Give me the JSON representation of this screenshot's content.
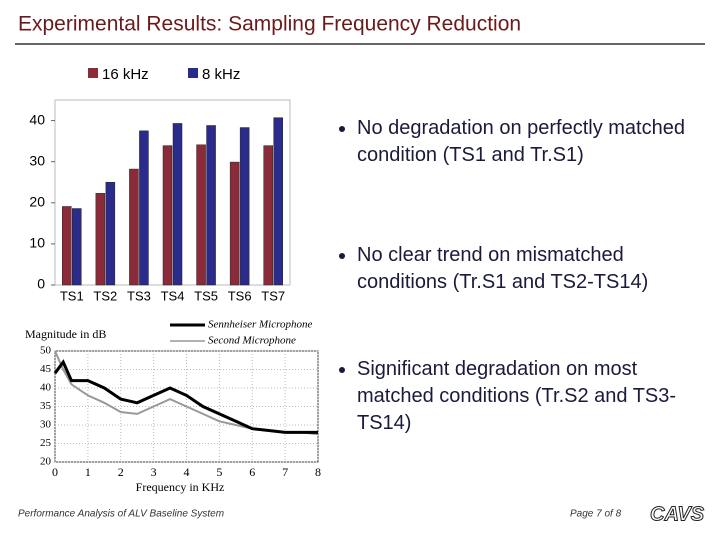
{
  "title": "Experimental Results: Sampling Frequency Reduction",
  "chart_data": [
    {
      "type": "bar",
      "categories": [
        "TS1",
        "TS2",
        "TS3",
        "TS4",
        "TS5",
        "TS6",
        "TS7"
      ],
      "series": [
        {
          "name": "16 kHz",
          "color": "#8b2b3a",
          "values": [
            19.1,
            22.3,
            28.2,
            33.9,
            34.1,
            29.9,
            33.9
          ]
        },
        {
          "name": "8 kHz",
          "color": "#2b2b8c",
          "values": [
            18.6,
            25,
            37.5,
            39.3,
            38.8,
            38.3,
            40.7
          ]
        }
      ],
      "ylim": [
        0,
        45
      ],
      "yticks": [
        0,
        10,
        20,
        30,
        40
      ],
      "grid": false
    },
    {
      "type": "line",
      "ylabel": "Magnitude in dB",
      "xlabel": "Frequency in KHz",
      "x": [
        0,
        0.25,
        0.5,
        1,
        1.5,
        2,
        2.5,
        3,
        3.5,
        4,
        4.5,
        5,
        5.5,
        6,
        6.5,
        7,
        7.5,
        8
      ],
      "series": [
        {
          "name": "Sennheiser Microphone",
          "color": "#000000",
          "values": [
            44,
            47,
            42,
            42,
            40,
            37,
            36,
            38,
            40,
            38,
            35,
            33,
            31,
            29,
            28.5,
            28,
            28,
            28
          ]
        },
        {
          "name": "Second Microphone",
          "color": "#999999",
          "values": [
            50,
            45,
            41,
            38,
            36,
            33.5,
            33,
            35,
            37,
            35,
            33,
            31,
            30,
            29,
            28.5,
            28,
            28,
            27.5
          ]
        }
      ],
      "xlim": [
        0,
        8
      ],
      "xticks": [
        0,
        1,
        2,
        3,
        4,
        5,
        6,
        7,
        8
      ],
      "ylim": [
        20,
        50
      ],
      "yticks": [
        20,
        25,
        30,
        35,
        40,
        45,
        50
      ],
      "grid": true
    }
  ],
  "bullets": [
    "No degradation on perfectly matched condition (TS1 and Tr.S1)",
    "No clear trend on mismatched conditions (Tr.S1 and TS2-TS14)",
    "Significant degradation on most matched conditions (Tr.S2 and TS3-TS14)"
  ],
  "footer": "Performance Analysis of ALV Baseline System",
  "page_number": "Page 7 of 8",
  "logo": "CAVS"
}
